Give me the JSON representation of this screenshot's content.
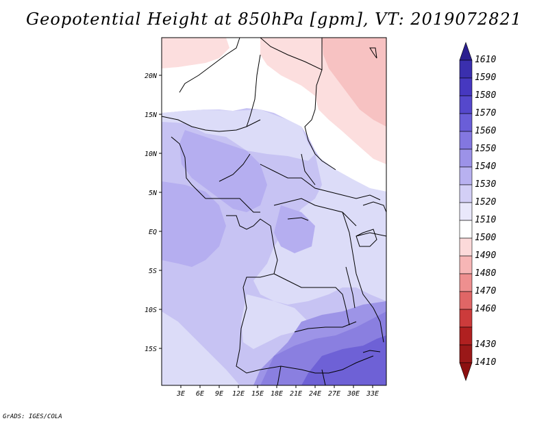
{
  "title": "Geopotential Height at 850hPa [gpm], VT: 2019072821",
  "credit": "GrADS: IGES/COLA",
  "map": {
    "lat_ticks": [
      "20N",
      "15N",
      "10N",
      "5N",
      "EQ",
      "5S",
      "10S",
      "15S"
    ],
    "lon_ticks": [
      "3E",
      "6E",
      "9E",
      "12E",
      "15E",
      "18E",
      "21E",
      "24E",
      "27E",
      "30E",
      "33E"
    ]
  },
  "colorbar": {
    "levels": [
      "1610",
      "1590",
      "1580",
      "1570",
      "1560",
      "1550",
      "1540",
      "1530",
      "1520",
      "1510",
      "1500",
      "1490",
      "1480",
      "1470",
      "1460",
      "1430",
      "1410"
    ],
    "colors": [
      "#2a1f8f",
      "#3a2fae",
      "#4638c0",
      "#5548cc",
      "#6a5ed8",
      "#8377e0",
      "#9c92e8",
      "#b8b1f0",
      "#d3cff6",
      "#e9e8fb",
      "#ffffff",
      "#fcdada",
      "#f7b6b6",
      "#ee8f8f",
      "#e06666",
      "#cc3b3b",
      "#b02020",
      "#8c1010"
    ]
  },
  "field_colors": {
    "c1490": "#f7c2c2",
    "c1500": "#fcdede",
    "c1510": "#ffffff",
    "c1520": "#dcdcf8",
    "c1530": "#c7c3f3",
    "c1540": "#b5aef0",
    "c1550": "#9d94e7",
    "c1560": "#8a7fe0",
    "c1570": "#6e61d6"
  }
}
